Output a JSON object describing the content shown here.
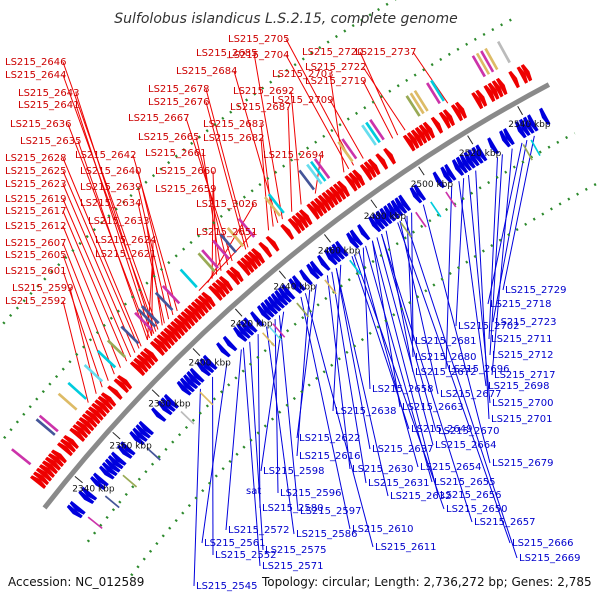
{
  "title": "Sulfolobus islandicus L.S.2.15, complete genome",
  "accession": "Accession: NC_012589",
  "footer": "Topology: circular; Length: 2,736,272 bp; Genes: 2,785",
  "colors": {
    "forward": "#ee0000",
    "reverse": "#0000dd",
    "backbone": "#8a8a8a",
    "dots": "#2d8a2d",
    "accents": [
      "#00ccdd",
      "#66ddee",
      "#99aa55",
      "#445599",
      "#cc33aa",
      "#bbbbbb",
      "#ddbb66"
    ]
  },
  "ticks": [
    {
      "label": "2340 kbp",
      "pos": 2340
    },
    {
      "label": "2360 kbp",
      "pos": 2360
    },
    {
      "label": "2380 kbp",
      "pos": 2380
    },
    {
      "label": "2400 kbp",
      "pos": 2400
    },
    {
      "label": "2420 kbp",
      "pos": 2420
    },
    {
      "label": "2440 kbp",
      "pos": 2440
    },
    {
      "label": "2460 kbp",
      "pos": 2460
    },
    {
      "label": "2480 kbp",
      "pos": 2480
    },
    {
      "label": "2500 kbp",
      "pos": 2500
    },
    {
      "label": "2520 kbp",
      "pos": 2520
    },
    {
      "label": "2540 kbp",
      "pos": 2540
    }
  ],
  "forward_genes": [
    {
      "label": "LS215_2646",
      "pos": 2396
    },
    {
      "label": "LS215_2644",
      "pos": 2395
    },
    {
      "label": "LS215_2643",
      "pos": 2394
    },
    {
      "label": "LS215_2641",
      "pos": 2393
    },
    {
      "label": "LS215_2636",
      "pos": 2392
    },
    {
      "label": "LS215_2635",
      "pos": 2391
    },
    {
      "label": "LS215_2628",
      "pos": 2388
    },
    {
      "label": "LS215_2625",
      "pos": 2387
    },
    {
      "label": "LS215_2623",
      "pos": 2385
    },
    {
      "label": "LS215_2619",
      "pos": 2383
    },
    {
      "label": "LS215_2617",
      "pos": 2381
    },
    {
      "label": "LS215_2612",
      "pos": 2378
    },
    {
      "label": "LS215_2607",
      "pos": 2375
    },
    {
      "label": "LS215_2605",
      "pos": 2372
    },
    {
      "label": "LS215_2601",
      "pos": 2369
    },
    {
      "label": "LS215_2599",
      "pos": 2366
    },
    {
      "label": "LS215_2592",
      "pos": 2362
    },
    {
      "label": "LS215_2642",
      "pos": 2405
    },
    {
      "label": "LS215_2640",
      "pos": 2403
    },
    {
      "label": "LS215_2639",
      "pos": 2401
    },
    {
      "label": "LS215_2634",
      "pos": 2399
    },
    {
      "label": "LS215_2633",
      "pos": 2398
    },
    {
      "label": "LS215_2624",
      "pos": 2393
    },
    {
      "label": "LS215_2621",
      "pos": 2391
    },
    {
      "label": "LS215_2678",
      "pos": 2437
    },
    {
      "label": "LS215_2676",
      "pos": 2436
    },
    {
      "label": "LS215_2667",
      "pos": 2430
    },
    {
      "label": "LS215_2665",
      "pos": 2428
    },
    {
      "label": "LS215_2661",
      "pos": 2425
    },
    {
      "label": "LS215_2660",
      "pos": 2423
    },
    {
      "label": "LS215_2659",
      "pos": 2421
    },
    {
      "label": "LS215_3026",
      "pos": 2419
    },
    {
      "label": "LS215_2651",
      "pos": 2415
    },
    {
      "label": "LS215_2685",
      "pos": 2452
    },
    {
      "label": "LS215_2684",
      "pos": 2450
    },
    {
      "label": "LS215_2692",
      "pos": 2460
    },
    {
      "label": "LS215_2687",
      "pos": 2456
    },
    {
      "label": "LS215_2683",
      "pos": 2448
    },
    {
      "label": "LS215_2682",
      "pos": 2446
    },
    {
      "label": "LS215_2694",
      "pos": 2466
    },
    {
      "label": "LS215_2705",
      "pos": 2482
    },
    {
      "label": "LS215_2704",
      "pos": 2480
    },
    {
      "label": "LS215_2703",
      "pos": 2478
    },
    {
      "label": "LS215_2709",
      "pos": 2486
    },
    {
      "label": "LS215_2720",
      "pos": 2500
    },
    {
      "label": "LS215_2722",
      "pos": 2503
    },
    {
      "label": "LS215_2719",
      "pos": 2498
    },
    {
      "label": "LS215_2737",
      "pos": 2520
    }
  ],
  "reverse_genes": [
    {
      "label": "LS215_2729",
      "pos": 2540
    },
    {
      "label": "LS215_2718",
      "pos": 2535
    },
    {
      "label": "LS215_2723",
      "pos": 2537
    },
    {
      "label": "LS215_2702",
      "pos": 2511
    },
    {
      "label": "LS215_2711",
      "pos": 2525
    },
    {
      "label": "LS215_2681",
      "pos": 2489
    },
    {
      "label": "LS215_2712",
      "pos": 2527
    },
    {
      "label": "LS215_2680",
      "pos": 2487
    },
    {
      "label": "LS215_2696",
      "pos": 2506
    },
    {
      "label": "LS215_2717",
      "pos": 2531
    },
    {
      "label": "LS215_2672",
      "pos": 2478
    },
    {
      "label": "LS215_2698",
      "pos": 2509
    },
    {
      "label": "LS215_2658",
      "pos": 2468
    },
    {
      "label": "LS215_2677",
      "pos": 2484
    },
    {
      "label": "LS215_2700",
      "pos": 2513
    },
    {
      "label": "LS215_2663",
      "pos": 2472
    },
    {
      "label": "LS215_2638",
      "pos": 2458
    },
    {
      "label": "LS215_2701",
      "pos": 2516
    },
    {
      "label": "LS215_2649",
      "pos": 2463
    },
    {
      "label": "LS215_2670",
      "pos": 2476
    },
    {
      "label": "LS215_2622",
      "pos": 2447
    },
    {
      "label": "LS215_2637",
      "pos": 2456
    },
    {
      "label": "LS215_2664",
      "pos": 2474
    },
    {
      "label": "LS215_2616",
      "pos": 2444
    },
    {
      "label": "LS215_2630",
      "pos": 2452
    },
    {
      "label": "LS215_2654",
      "pos": 2466
    },
    {
      "label": "LS215_2679",
      "pos": 2494
    },
    {
      "label": "LS215_2598",
      "pos": 2432
    },
    {
      "label": "LS215_2631",
      "pos": 2454
    },
    {
      "label": "LS215_2655",
      "pos": 2469
    },
    {
      "label": "LS215_2596",
      "pos": 2428
    },
    {
      "label": "LS215_2632",
      "pos": 2456
    },
    {
      "label": "LS215_2656",
      "pos": 2472
    },
    {
      "label": "LS215_2580",
      "pos": 2420
    },
    {
      "label": "LS215_2597",
      "pos": 2430
    },
    {
      "label": "LS215_2650",
      "pos": 2464
    },
    {
      "label": "LS215_2572",
      "pos": 2412
    },
    {
      "label": "LS215_2586",
      "pos": 2424
    },
    {
      "label": "LS215_2610",
      "pos": 2440
    },
    {
      "label": "LS215_2657",
      "pos": 2476
    },
    {
      "label": "LS215_2561",
      "pos": 2405
    },
    {
      "label": "LS215_2552",
      "pos": 2398
    },
    {
      "label": "LS215_2575",
      "pos": 2416
    },
    {
      "label": "LS215_2611",
      "pos": 2442
    },
    {
      "label": "LS215_2666",
      "pos": 2483
    },
    {
      "label": "LS215_2571",
      "pos": 2413
    },
    {
      "label": "LS215_2669",
      "pos": 2486
    },
    {
      "label": "LS215_2545",
      "pos": 2392
    }
  ],
  "sat_label": "sat"
}
